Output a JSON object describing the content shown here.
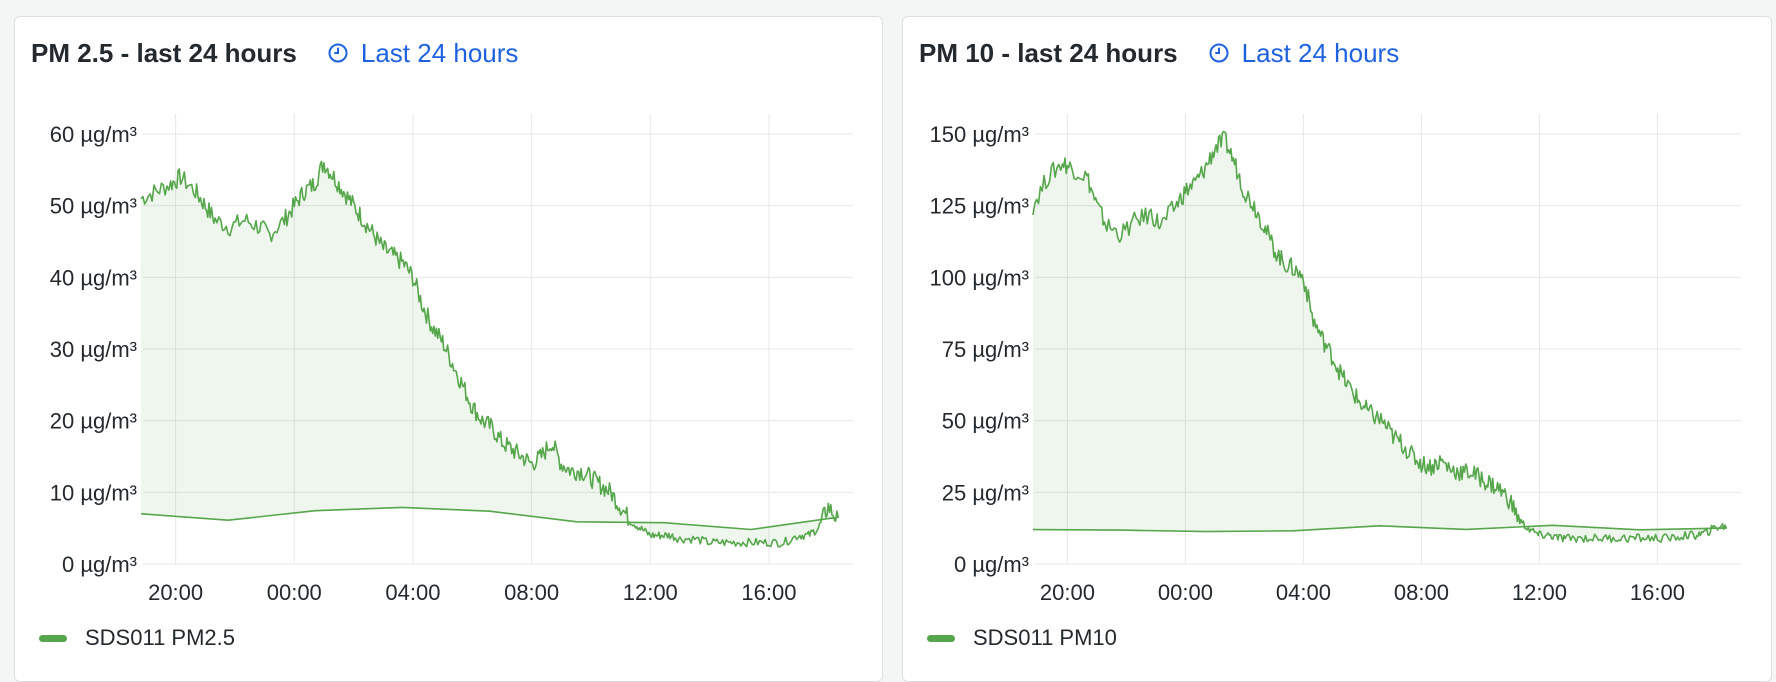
{
  "panels": [
    {
      "title": "PM 2.5 - last 24 hours",
      "time_range_label": "Last 24 hours",
      "legend": {
        "label": "SDS011 PM2.5",
        "color": "#56a64b"
      }
    },
    {
      "title": "PM 10 - last 24 hours",
      "time_range_label": "Last 24 hours",
      "legend": {
        "label": "SDS011 PM10",
        "color": "#56a64b"
      }
    }
  ],
  "chart_data": [
    {
      "type": "area",
      "title": "PM 2.5 - last 24 hours",
      "xlabel": "",
      "ylabel": "",
      "x_ticks": [
        "20:00",
        "00:00",
        "04:00",
        "08:00",
        "12:00",
        "16:00"
      ],
      "y_ticks": [
        "0 µg/m³",
        "10 µg/m³",
        "20 µg/m³",
        "30 µg/m³",
        "40 µg/m³",
        "50 µg/m³",
        "60 µg/m³"
      ],
      "y_tick_values": [
        0,
        10,
        20,
        30,
        40,
        50,
        60
      ],
      "ylim": [
        0,
        60
      ],
      "xlim": [
        "18:50",
        "18:50"
      ],
      "grid": true,
      "legend_position": "bottom-left",
      "series": [
        {
          "name": "SDS011 PM2.5",
          "color": "#56a64b",
          "x": [
            "18:50",
            "19:20",
            "19:50",
            "20:10",
            "20:40",
            "21:00",
            "21:20",
            "21:50",
            "22:20",
            "22:50",
            "23:10",
            "23:40",
            "00:00",
            "00:20",
            "00:40",
            "01:00",
            "01:20",
            "01:40",
            "02:00",
            "02:20",
            "02:40",
            "03:00",
            "03:20",
            "03:40",
            "04:00",
            "04:20",
            "04:40",
            "05:00",
            "05:20",
            "05:40",
            "06:00",
            "06:20",
            "06:40",
            "07:00",
            "07:20",
            "07:40",
            "08:00",
            "08:20",
            "08:40",
            "09:00",
            "09:20",
            "09:40",
            "10:00",
            "10:20",
            "10:40",
            "11:00",
            "11:20",
            "11:40",
            "12:00",
            "12:20",
            "12:40",
            "13:00",
            "13:30",
            "14:00",
            "14:30",
            "15:00",
            "15:30",
            "16:00",
            "16:30",
            "17:00",
            "17:20",
            "17:40",
            "18:00",
            "18:20",
            "18:50"
          ],
          "values": [
            51,
            52,
            53,
            54,
            52,
            50,
            48,
            47,
            48,
            47,
            46,
            48,
            50,
            52,
            53,
            56,
            54,
            52,
            50,
            48,
            46,
            44,
            43,
            42,
            40,
            36,
            33,
            31,
            28,
            25,
            22,
            20,
            19,
            17,
            16,
            15,
            14,
            15,
            17,
            14,
            13,
            13,
            12,
            11,
            10,
            8,
            6,
            5,
            4,
            4,
            4,
            3.5,
            3.5,
            3,
            3,
            3,
            3,
            3,
            3,
            4,
            4,
            5,
            8,
            6,
            7
          ]
        }
      ]
    },
    {
      "type": "area",
      "title": "PM 10 - last 24 hours",
      "xlabel": "",
      "ylabel": "",
      "x_ticks": [
        "20:00",
        "00:00",
        "04:00",
        "08:00",
        "12:00",
        "16:00"
      ],
      "y_ticks": [
        "0 µg/m³",
        "25 µg/m³",
        "50 µg/m³",
        "75 µg/m³",
        "100 µg/m³",
        "125 µg/m³",
        "150 µg/m³"
      ],
      "y_tick_values": [
        0,
        25,
        50,
        75,
        100,
        125,
        150
      ],
      "ylim": [
        0,
        150
      ],
      "xlim": [
        "18:50",
        "18:50"
      ],
      "grid": true,
      "legend_position": "bottom-left",
      "series": [
        {
          "name": "SDS011 PM10",
          "color": "#56a64b",
          "x": [
            "18:50",
            "19:20",
            "19:50",
            "20:10",
            "20:40",
            "21:00",
            "21:20",
            "21:50",
            "22:20",
            "22:50",
            "23:10",
            "23:40",
            "00:00",
            "00:20",
            "00:40",
            "01:00",
            "01:20",
            "01:40",
            "02:00",
            "02:20",
            "02:40",
            "03:00",
            "03:20",
            "03:40",
            "04:00",
            "04:20",
            "04:40",
            "05:00",
            "05:20",
            "05:40",
            "06:00",
            "06:20",
            "06:40",
            "07:00",
            "07:20",
            "07:40",
            "08:00",
            "08:20",
            "08:40",
            "09:00",
            "09:20",
            "09:40",
            "10:00",
            "10:20",
            "10:40",
            "11:00",
            "11:20",
            "11:40",
            "12:00",
            "12:20",
            "12:40",
            "13:00",
            "13:30",
            "14:00",
            "14:30",
            "15:00",
            "15:30",
            "16:00",
            "16:30",
            "17:00",
            "17:20",
            "17:40",
            "18:00",
            "18:20",
            "18:50"
          ],
          "values": [
            125,
            135,
            140,
            138,
            135,
            125,
            118,
            115,
            120,
            122,
            118,
            125,
            130,
            133,
            138,
            145,
            148,
            140,
            130,
            125,
            118,
            110,
            105,
            103,
            100,
            85,
            78,
            72,
            65,
            60,
            55,
            52,
            50,
            45,
            42,
            38,
            35,
            34,
            36,
            33,
            32,
            32,
            30,
            28,
            26,
            22,
            15,
            12,
            10,
            10,
            9,
            9,
            9,
            9,
            9,
            9,
            9,
            9,
            9,
            10,
            10,
            11,
            13,
            13,
            12
          ]
        }
      ]
    }
  ]
}
